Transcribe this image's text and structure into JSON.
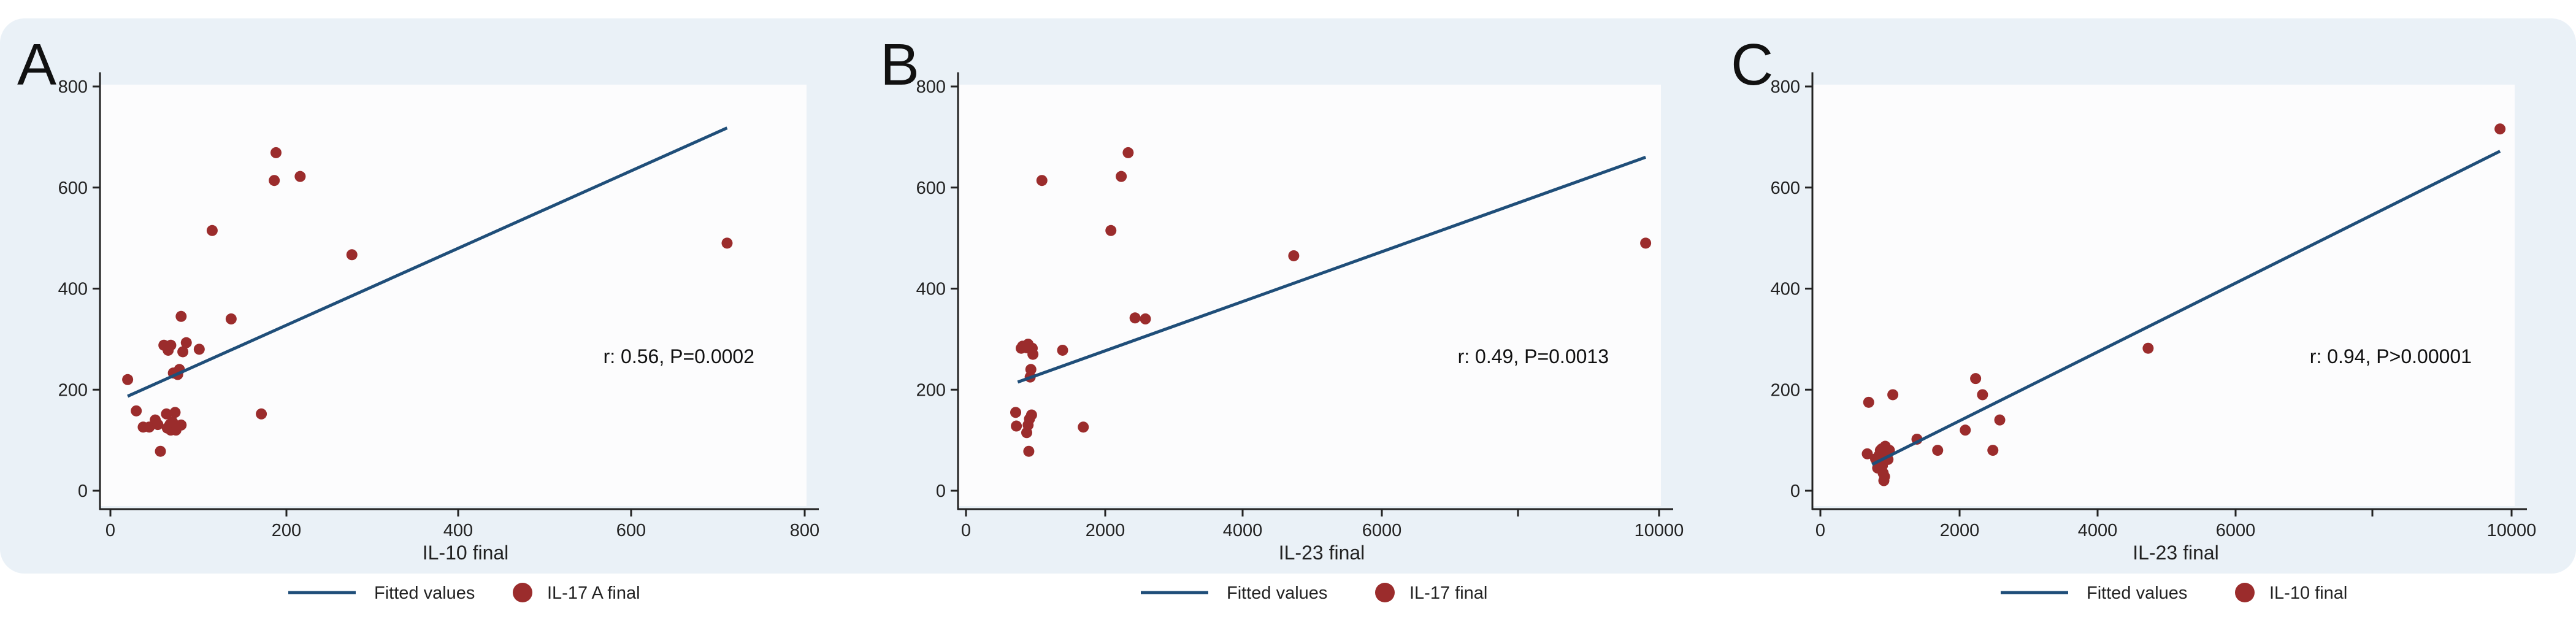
{
  "colors": {
    "line": "#1f4e79",
    "marker": "#9b2c2c",
    "panel_background": "#eaf1f7",
    "plot_background": "#fcfcfd"
  },
  "chart_data": [
    {
      "type": "scatter",
      "panel_label": "A",
      "xlabel": "IL-10 final",
      "ylabel": "",
      "xlim": [
        0,
        800
      ],
      "ylim": [
        0,
        800
      ],
      "xticks": [
        "0",
        "200",
        "400",
        "600",
        "800"
      ],
      "yticks": [
        "0",
        "200",
        "400",
        "600",
        "800"
      ],
      "annotation": "r: 0.56, P=0.0002",
      "legend": [
        "Fitted values",
        "IL-17 A final"
      ],
      "fit_line": {
        "name": "Fitted values",
        "x": [
          20,
          715
        ],
        "y": [
          187,
          718
        ]
      },
      "series": [
        {
          "name": "IL-17 A final",
          "points": [
            [
              20,
              220
            ],
            [
              30,
              158
            ],
            [
              38,
              126
            ],
            [
              45,
              126
            ],
            [
              52,
              140
            ],
            [
              55,
              131
            ],
            [
              58,
              78
            ],
            [
              62,
              288
            ],
            [
              65,
              152
            ],
            [
              66,
              124
            ],
            [
              67,
              278
            ],
            [
              69,
              131
            ],
            [
              70,
              120
            ],
            [
              70,
              288
            ],
            [
              72,
              136
            ],
            [
              73,
              233
            ],
            [
              75,
              155
            ],
            [
              76,
              120
            ],
            [
              77,
              128
            ],
            [
              78,
              230
            ],
            [
              80,
              240
            ],
            [
              82,
              130
            ],
            [
              82,
              345
            ],
            [
              84,
              275
            ],
            [
              88,
              293
            ],
            [
              103,
              280
            ],
            [
              118,
              515
            ],
            [
              140,
              340
            ],
            [
              175,
              152
            ],
            [
              190,
              614
            ],
            [
              192,
              669
            ],
            [
              220,
              622
            ],
            [
              280,
              467
            ],
            [
              715,
              490
            ]
          ]
        }
      ]
    },
    {
      "type": "scatter",
      "panel_label": "B",
      "xlabel": "IL-23 final",
      "ylabel": "",
      "xlim": [
        0,
        10000
      ],
      "ylim": [
        0,
        800
      ],
      "xticks": [
        "0",
        "2000",
        "4000",
        "6000",
        "10000"
      ],
      "yticks": [
        "0",
        "200",
        "400",
        "600",
        "800"
      ],
      "annotation": "r: 0.49, P=0.0013",
      "legend": [
        "Fitted values",
        "IL-17 final"
      ],
      "fit_line": {
        "name": "Fitted values",
        "x": [
          750,
          9850
        ],
        "y": [
          215,
          660
        ]
      },
      "series": [
        {
          "name": "IL-17 final",
          "points": [
            [
              720,
              155
            ],
            [
              730,
              128
            ],
            [
              800,
              282
            ],
            [
              820,
              286
            ],
            [
              880,
              115
            ],
            [
              880,
              283
            ],
            [
              900,
              130
            ],
            [
              900,
              290
            ],
            [
              910,
              78
            ],
            [
              920,
              142
            ],
            [
              930,
              225
            ],
            [
              940,
              240
            ],
            [
              950,
              150
            ],
            [
              960,
              282
            ],
            [
              970,
              270
            ],
            [
              1100,
              614
            ],
            [
              1400,
              278
            ],
            [
              1700,
              126
            ],
            [
              2100,
              515
            ],
            [
              2250,
              622
            ],
            [
              2350,
              669
            ],
            [
              2450,
              342
            ],
            [
              2600,
              340
            ],
            [
              4750,
              465
            ],
            [
              9850,
              490
            ]
          ]
        }
      ]
    },
    {
      "type": "scatter",
      "panel_label": "C",
      "xlabel": "IL-23 final",
      "ylabel": "",
      "xlim": [
        0,
        10000
      ],
      "ylim": [
        0,
        800
      ],
      "xticks": [
        "0",
        "2000",
        "4000",
        "6000",
        "10000"
      ],
      "yticks": [
        "0",
        "200",
        "400",
        "600",
        "800"
      ],
      "annotation": "r: 0.94, P>0.00001",
      "legend": [
        "Fitted values",
        "IL-10 final"
      ],
      "fit_line": {
        "name": "Fitted values",
        "x": [
          750,
          9850
        ],
        "y": [
          52,
          672
        ]
      },
      "series": [
        {
          "name": "IL-10 final",
          "points": [
            [
              680,
              73
            ],
            [
              700,
              175
            ],
            [
              800,
              63
            ],
            [
              830,
              45
            ],
            [
              850,
              70
            ],
            [
              870,
              80
            ],
            [
              880,
              60
            ],
            [
              890,
              83
            ],
            [
              900,
              50
            ],
            [
              910,
              35
            ],
            [
              920,
              20
            ],
            [
              930,
              28
            ],
            [
              940,
              88
            ],
            [
              960,
              72
            ],
            [
              980,
              62
            ],
            [
              1000,
              80
            ],
            [
              1050,
              190
            ],
            [
              1400,
              102
            ],
            [
              1700,
              80
            ],
            [
              2100,
              120
            ],
            [
              2250,
              222
            ],
            [
              2350,
              190
            ],
            [
              2500,
              80
            ],
            [
              2600,
              140
            ],
            [
              4750,
              282
            ],
            [
              9850,
              716
            ]
          ]
        }
      ]
    }
  ]
}
